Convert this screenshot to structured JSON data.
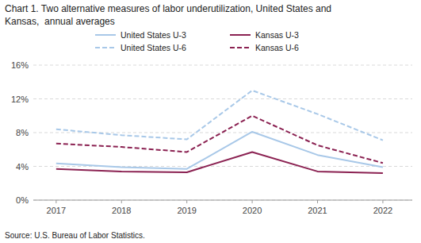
{
  "chart_data": {
    "type": "line",
    "title": "Chart 1. Two alternative measures of labor underutilization, United States and",
    "subtitle": "Kansas,  annual averages",
    "annotations": [
      "Source: U.S. Bureau of Labor Statistics."
    ],
    "x": [
      2017,
      2018,
      2019,
      2020,
      2021,
      2022
    ],
    "series": [
      {
        "name": "United States U-3",
        "color": "#a8c8e8",
        "line_style": "solid",
        "values": [
          4.35,
          3.9,
          3.7,
          8.1,
          5.35,
          3.9
        ]
      },
      {
        "name": "United States U-6",
        "color": "#a8c8e8",
        "line_style": "dashed",
        "values": [
          8.4,
          7.7,
          7.2,
          13.0,
          10.2,
          7.1
        ]
      },
      {
        "name": "Kansas U-3",
        "color": "#8b2252",
        "line_style": "solid",
        "values": [
          3.7,
          3.4,
          3.3,
          5.7,
          3.4,
          3.2
        ]
      },
      {
        "name": "Kansas U-6",
        "color": "#8b2252",
        "line_style": "dashed",
        "values": [
          6.7,
          6.3,
          5.7,
          10.0,
          6.5,
          4.4
        ]
      }
    ],
    "xlim": [
      2016.65,
      2022.45
    ],
    "xticks": [
      2017,
      2018,
      2019,
      2020,
      2021,
      2022
    ],
    "ylim": [
      0,
      16
    ],
    "yticks": [
      {
        "value": 0,
        "label": "0%"
      },
      {
        "value": 4,
        "label": "4%"
      },
      {
        "value": 8,
        "label": "8%"
      },
      {
        "value": 12,
        "label": "12%"
      },
      {
        "value": 16,
        "label": "16%"
      }
    ],
    "grid": "y",
    "legend": "top"
  }
}
